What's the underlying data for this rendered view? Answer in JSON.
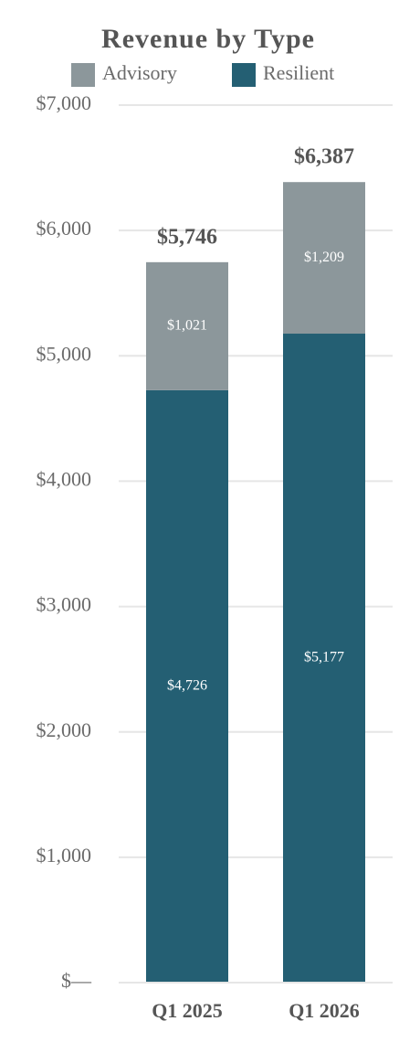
{
  "chart_data": {
    "type": "stacked_bar",
    "title": "Revenue by Type",
    "categories": [
      "Q1 2025",
      "Q1 2026"
    ],
    "series": [
      {
        "name": "Advisory",
        "color": "#8c979b",
        "values": [
          1021,
          1209
        ],
        "value_labels": [
          "$1,021",
          "$1,209"
        ]
      },
      {
        "name": "Resilient",
        "color": "#245f73",
        "values": [
          4726,
          5177
        ],
        "value_labels": [
          "$4,726",
          "$5,177"
        ]
      }
    ],
    "totals": {
      "values": [
        5746,
        6387
      ],
      "value_labels": [
        "$5,746",
        "$6,387"
      ]
    },
    "ylim": [
      0,
      7000
    ],
    "yticks": [
      {
        "value": 0,
        "label": "$—"
      },
      {
        "value": 1000,
        "label": "$1,000"
      },
      {
        "value": 2000,
        "label": "$2,000"
      },
      {
        "value": 3000,
        "label": "$3,000"
      },
      {
        "value": 4000,
        "label": "$4,000"
      },
      {
        "value": 5000,
        "label": "$5,000"
      },
      {
        "value": 6000,
        "label": "$6,000"
      },
      {
        "value": 7000,
        "label": "$7,000"
      }
    ],
    "grid": true
  }
}
